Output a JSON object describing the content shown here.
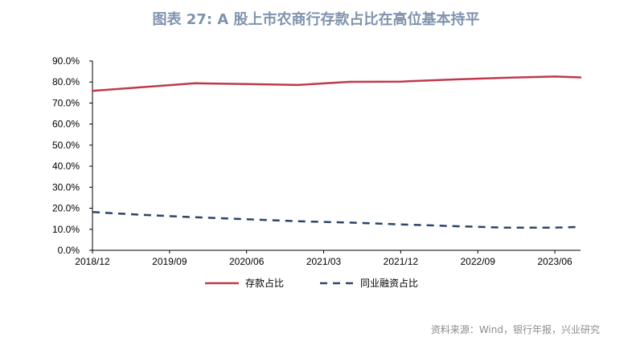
{
  "chart_data": {
    "type": "line",
    "title": "图表 27: A 股上市农商行存款占比在高位基本持平",
    "ylim": [
      0,
      0.9
    ],
    "yticks": [
      "0.0%",
      "10.0%",
      "20.0%",
      "30.0%",
      "40.0%",
      "50.0%",
      "60.0%",
      "70.0%",
      "80.0%",
      "90.0%"
    ],
    "x": [
      "2018/12",
      "2019/06",
      "2019/12",
      "2020/06",
      "2020/12",
      "2021/06",
      "2021/12",
      "2022/06",
      "2022/12",
      "2023/06",
      "2023/09"
    ],
    "xticks": [
      "2018/12",
      "2019/09",
      "2020/06",
      "2021/03",
      "2021/12",
      "2022/09",
      "2023/06"
    ],
    "legend_position": "bottom",
    "grid": false,
    "series": [
      {
        "name": "存款占比",
        "color": "#c0394b",
        "dash": "solid",
        "values": [
          0.758,
          0.776,
          0.794,
          0.79,
          0.786,
          0.801,
          0.802,
          0.812,
          0.82,
          0.826,
          0.822
        ]
      },
      {
        "name": "同业融资占比",
        "color": "#2e4466",
        "dash": "dashed",
        "values": [
          0.182,
          0.168,
          0.157,
          0.148,
          0.138,
          0.132,
          0.123,
          0.115,
          0.108,
          0.108,
          0.111
        ]
      }
    ]
  },
  "source": "资料来源：Wind，银行年报，兴业研究"
}
